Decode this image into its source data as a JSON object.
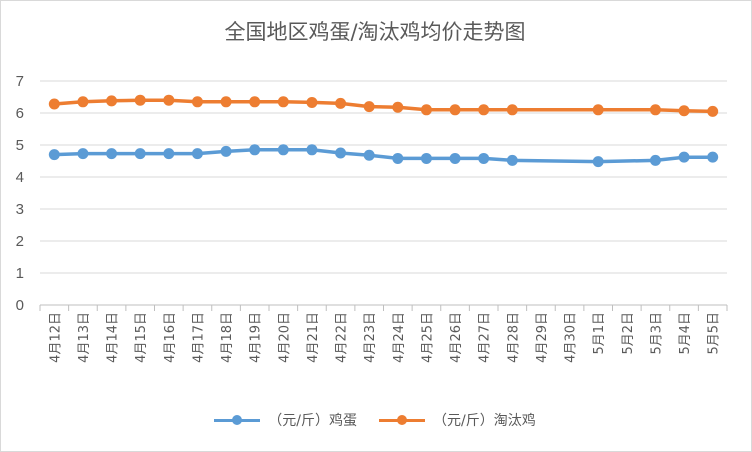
{
  "chart_data": {
    "type": "line",
    "title": "全国地区鸡蛋/淘汰鸡均价走势图",
    "categories": [
      "4月12日",
      "4月13日",
      "4月14日",
      "4月15日",
      "4月16日",
      "4月17日",
      "4月18日",
      "4月19日",
      "4月20日",
      "4月21日",
      "4月22日",
      "4月23日",
      "4月24日",
      "4月25日",
      "4月26日",
      "4月27日",
      "4月28日",
      "4月29日",
      "4月30日",
      "5月1日",
      "5月2日",
      "5月3日",
      "5月4日",
      "5月5日"
    ],
    "y_ticks": [
      "0",
      "1",
      "2",
      "3",
      "4",
      "5",
      "6",
      "7"
    ],
    "ylim": [
      0,
      7
    ],
    "grid": true,
    "legend_position": "bottom",
    "series": [
      {
        "name": "（元/斤）鸡蛋",
        "color": "#5b9bd5",
        "values": [
          4.7,
          4.73,
          4.73,
          4.73,
          4.73,
          4.73,
          4.8,
          4.85,
          4.85,
          4.85,
          4.75,
          4.68,
          4.58,
          4.58,
          4.58,
          4.58,
          4.52,
          null,
          null,
          4.48,
          null,
          4.52,
          4.62,
          4.62
        ]
      },
      {
        "name": "（元/斤）淘汰鸡",
        "color": "#ed7d31",
        "values": [
          6.28,
          6.35,
          6.38,
          6.4,
          6.4,
          6.35,
          6.35,
          6.35,
          6.35,
          6.33,
          6.3,
          6.2,
          6.18,
          6.1,
          6.1,
          6.1,
          6.1,
          null,
          null,
          6.1,
          null,
          6.1,
          6.07,
          6.05
        ]
      }
    ]
  }
}
